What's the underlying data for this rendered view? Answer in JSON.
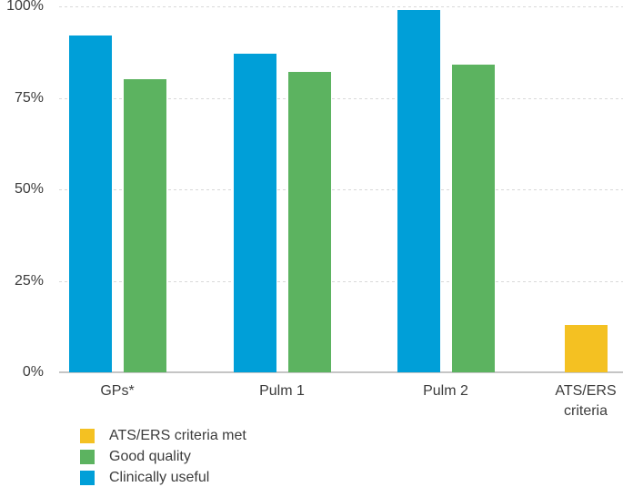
{
  "chart_data": {
    "type": "bar",
    "title": "",
    "xlabel": "",
    "ylabel": "",
    "ylim": [
      0,
      100
    ],
    "grid": "horizontal-dashed",
    "categories": [
      "GPs*",
      "Pulm 1",
      "Pulm 2",
      "ATS/ERS\ncriteria"
    ],
    "series": [
      {
        "name": "Clinically useful",
        "color": "#009FD8",
        "values": [
          92,
          87,
          99,
          null
        ]
      },
      {
        "name": "Good quality",
        "color": "#5CB360",
        "values": [
          80,
          82,
          84,
          null
        ]
      },
      {
        "name": "ATS/ERS criteria met",
        "color": "#F4C122",
        "values": [
          null,
          null,
          null,
          13
        ]
      }
    ],
    "yticks": [
      {
        "value": 0,
        "label": "0%"
      },
      {
        "value": 25,
        "label": "25%"
      },
      {
        "value": 50,
        "label": "50%"
      },
      {
        "value": 75,
        "label": "75%"
      },
      {
        "value": 100,
        "label": "100%"
      }
    ],
    "legend": {
      "position": "bottom-left",
      "items": [
        {
          "label": "ATS/ERS criteria met",
          "color": "#F4C122"
        },
        {
          "label": "Good quality",
          "color": "#5CB360"
        },
        {
          "label": "Clinically useful",
          "color": "#009FD8"
        }
      ]
    },
    "colors": {
      "text": "#3C3C3C",
      "gridline": "#D9D9D9",
      "axis_line": "#C5C5C5",
      "background": "#FFFFFF"
    }
  }
}
